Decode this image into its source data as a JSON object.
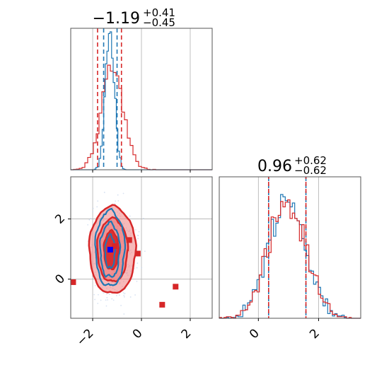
{
  "colors": {
    "red": "#d62728",
    "blue": "#1f77b4",
    "red_fill": "#f08080",
    "grid": "#b0b0b0",
    "axis": "#555555"
  },
  "chart_data": {
    "type": "corner",
    "parameters": [
      {
        "title_main": "−1.19",
        "title_sup": "+0.41",
        "title_sub": "−0.45",
        "median": -1.19,
        "lower": -1.64,
        "upper": -0.78
      },
      {
        "title_main": "0.96",
        "title_sup": "+0.62",
        "title_sub": "−0.62",
        "median": 0.96,
        "lower": 0.34,
        "upper": 1.58
      }
    ],
    "xlim_param1": [
      -2.9,
      2.9
    ],
    "xlim_param2": [
      -1.3,
      3.4
    ],
    "ylim_param2": [
      -1.3,
      3.4
    ],
    "x_ticks_param1": [
      {
        "value": -2,
        "label": "−2"
      },
      {
        "value": 0,
        "label": "0"
      },
      {
        "value": 2,
        "label": "2"
      }
    ],
    "y_ticks_param2": [
      {
        "value": 0,
        "label": "0"
      },
      {
        "value": 2,
        "label": "2"
      }
    ],
    "x_ticks_param2": [
      {
        "value": 0,
        "label": "0"
      },
      {
        "value": 2,
        "label": "2"
      }
    ],
    "series": [
      {
        "color": "#d62728",
        "interval_lines_param1": [
          -1.8,
          -0.82
        ],
        "interval_lines_param2": [
          0.34,
          1.58
        ]
      },
      {
        "color": "#1f77b4",
        "interval_lines_param1": [
          -1.55,
          -1.0
        ],
        "interval_lines_param2": [
          0.34,
          1.58
        ],
        "median_param1": -1.3
      }
    ],
    "red_markers": [
      {
        "x": -2.8,
        "y": -0.1
      },
      {
        "x": -1.1,
        "y": 1.1
      },
      {
        "x": -0.5,
        "y": 1.3
      },
      {
        "x": -0.15,
        "y": 0.85
      },
      {
        "x": 0.85,
        "y": -0.85
      },
      {
        "x": 1.4,
        "y": -0.25
      }
    ],
    "blue_markers": [
      {
        "x": -1.28,
        "y": 0.98
      }
    ],
    "grid": true
  }
}
